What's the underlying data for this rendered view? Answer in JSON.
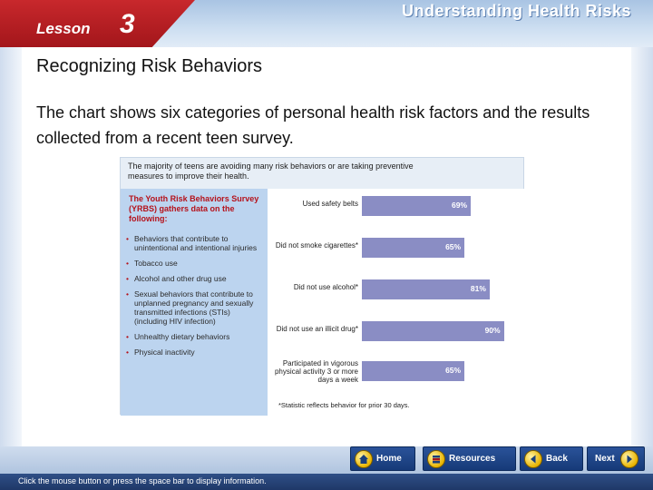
{
  "header": {
    "lesson_word": "Lesson",
    "lesson_number": "3",
    "title": "Understanding Health Risks"
  },
  "slide": {
    "subtitle": "Recognizing Risk Behaviors",
    "body": "The chart shows six categories of personal health risk factors and the results collected from a recent teen survey."
  },
  "figure": {
    "heading": "The majority of teens are avoiding many risk behaviors or are taking preventive measures to improve their health.",
    "side_title": "The Youth Risk Behaviors Survey (YRBS) gathers data on the following:",
    "side_items": [
      "Behaviors that contribute to unintentional and intentional injuries",
      "Tobacco use",
      "Alcohol and other drug use",
      "Sexual behaviors that contribute to unplanned pregnancy and sexually transmitted infections (STIs) (including HIV infection)",
      "Unhealthy dietary behaviors",
      "Physical inactivity"
    ],
    "note": "*Statistic reflects behavior for prior 30 days."
  },
  "chart_data": {
    "type": "bar",
    "orientation": "horizontal",
    "categories": [
      "Used safety belts",
      "Did not smoke cigarettes*",
      "Did not use alcohol*",
      "Did not use an illicit drug*",
      "Participated in vigorous physical activity 3 or more days a week"
    ],
    "values": [
      69,
      65,
      81,
      90,
      65
    ],
    "value_labels": [
      "69%",
      "65%",
      "81%",
      "90%",
      "65%"
    ],
    "xlim": [
      0,
      100
    ],
    "bar_color": "#8a8dc4"
  },
  "footer": {
    "hint": "Click the mouse button or press the space bar to display information.",
    "buttons": {
      "home": "Home",
      "resources": "Resources",
      "back": "Back",
      "next": "Next"
    }
  },
  "colors": {
    "lesson_tab": "#b5121b",
    "nav_button": "#1f4a8f",
    "header_band": "#bcd2ec"
  }
}
